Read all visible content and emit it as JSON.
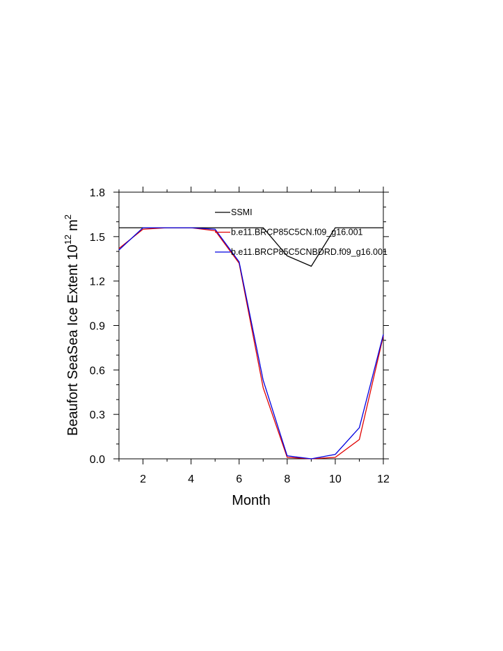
{
  "chart_data": {
    "type": "line",
    "xlabel": "Month",
    "ylabel": "Beaufort SeaSea Ice Extent 10",
    "ylabel_exponent": "12",
    "ylabel_unit": "m",
    "ylabel_unit_exponent": "2",
    "xlim": [
      1,
      12
    ],
    "ylim": [
      0,
      1.8
    ],
    "x_ticks": [
      2,
      4,
      6,
      8,
      10,
      12
    ],
    "x_tick_labels": [
      "2",
      "4",
      "6",
      "8",
      "10",
      "12"
    ],
    "y_ticks": [
      0,
      0.3,
      0.6,
      0.9,
      1.2,
      1.5,
      1.8
    ],
    "y_tick_labels": [
      "0.0",
      "0.3",
      "0.6",
      "0.9",
      "1.2",
      "1.5",
      "1.8"
    ],
    "grid": false,
    "legend_position": "top-right",
    "x": [
      1,
      2,
      3,
      4,
      5,
      6,
      7,
      8,
      9,
      10,
      11,
      12
    ],
    "series": [
      {
        "name": "SSMI",
        "color": "#000000",
        "values": [
          1.56,
          1.56,
          1.56,
          1.56,
          1.56,
          1.56,
          1.56,
          1.37,
          1.3,
          1.56,
          1.56,
          1.56
        ]
      },
      {
        "name": "b.e11.BRCP85C5CN.f09_g16.001",
        "color": "#e00000",
        "values": [
          1.42,
          1.55,
          1.56,
          1.56,
          1.54,
          1.32,
          0.48,
          0.01,
          0.0,
          0.01,
          0.13,
          0.83
        ]
      },
      {
        "name": "b.e11.BRCP85C5CNBDRD.f09_g16.001",
        "color": "#0000e0",
        "values": [
          1.41,
          1.56,
          1.56,
          1.56,
          1.55,
          1.33,
          0.53,
          0.02,
          0.0,
          0.03,
          0.21,
          0.84
        ]
      }
    ]
  }
}
